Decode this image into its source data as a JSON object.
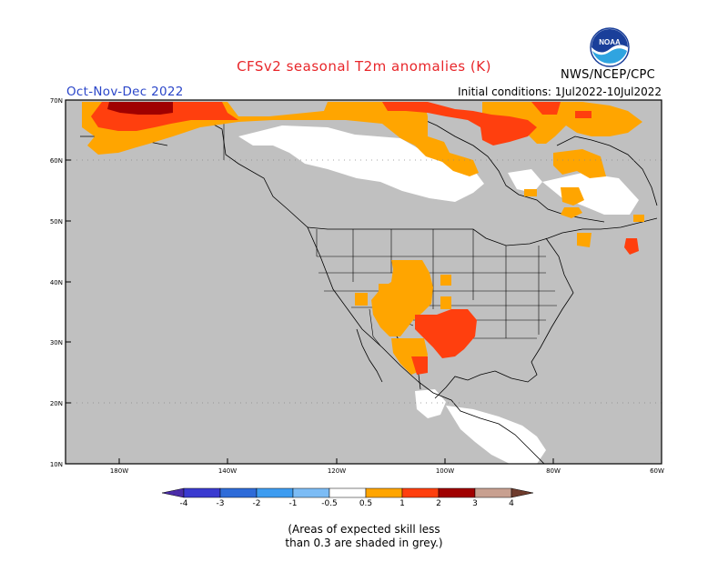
{
  "header": {
    "title": "CFSv2 seasonal T2m anomalies (K)",
    "season": "Oct-Nov-Dec 2022",
    "initial_conditions": "Initial conditions: 1Jul2022-10Jul2022",
    "agency": "NWS/NCEP/CPC",
    "logo_text": "NOAA"
  },
  "map": {
    "lat_labels": [
      "70N",
      "60N",
      "50N",
      "40N",
      "30N",
      "20N",
      "10N"
    ],
    "lon_labels": [
      "180W",
      "140W",
      "120W",
      "100W",
      "80W",
      "60W"
    ],
    "skill_mask_color": "#c0c0c0",
    "land_positive_palette": [
      "#ffa500",
      "#ff3f0e",
      "#a00000"
    ]
  },
  "legend": {
    "tick_labels": [
      "-4",
      "-3",
      "-2",
      "-1",
      "-0.5",
      "0.5",
      "1",
      "2",
      "3",
      "4"
    ],
    "colors": [
      "#4a2ca8",
      "#3a3ad0",
      "#2e6bd8",
      "#3d9cf0",
      "#7cbcf5",
      "#ffffff",
      "#ffa500",
      "#ff3f0e",
      "#a00000",
      "#c8a090",
      "#6e3b2c"
    ]
  },
  "notes": {
    "line1": "(Areas of expected skill less",
    "line2": "than 0.3 are shaded in grey.)"
  }
}
